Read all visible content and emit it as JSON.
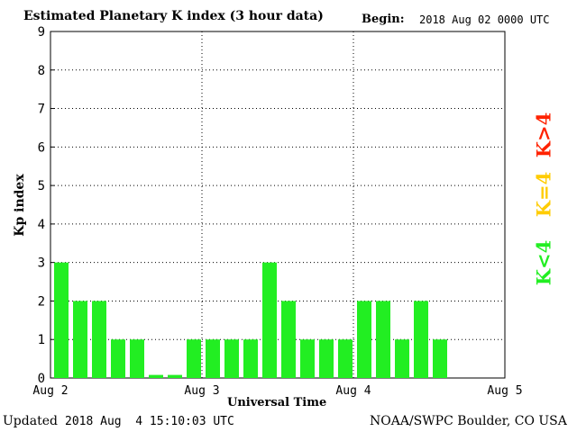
{
  "header": {
    "title": "Estimated Planetary K index (3 hour data)",
    "begin_label": "Begin:",
    "begin_value": "2018 Aug 02 0000 UTC"
  },
  "footer": {
    "updated_label": "Updated",
    "updated_value": "2018 Aug  4 15:10:03 UTC",
    "source": "NOAA/SWPC Boulder, CO USA"
  },
  "legend": {
    "low": {
      "label": "K<4",
      "color": "#22ee22"
    },
    "mid": {
      "label": "K=4",
      "color": "#ffcc00"
    },
    "high": {
      "label": "K>4",
      "color": "#ff2200"
    }
  },
  "chart_data": {
    "type": "bar",
    "title": "Estimated Planetary K index (3 hour data)",
    "xlabel": "Universal Time",
    "ylabel": "Kp index",
    "ylim": [
      0,
      9
    ],
    "yticks": [
      "0",
      "1",
      "2",
      "3",
      "4",
      "5",
      "6",
      "7",
      "8",
      "9"
    ],
    "xticks": [
      "Aug 2",
      "Aug 3",
      "Aug 4",
      "Aug 5"
    ],
    "grid": true,
    "interval_hours": 3,
    "x": [
      "2018-08-02 00:00",
      "2018-08-02 03:00",
      "2018-08-02 06:00",
      "2018-08-02 09:00",
      "2018-08-02 12:00",
      "2018-08-02 15:00",
      "2018-08-02 18:00",
      "2018-08-02 21:00",
      "2018-08-03 00:00",
      "2018-08-03 03:00",
      "2018-08-03 06:00",
      "2018-08-03 09:00",
      "2018-08-03 12:00",
      "2018-08-03 15:00",
      "2018-08-03 18:00",
      "2018-08-03 21:00",
      "2018-08-04 00:00",
      "2018-08-04 03:00",
      "2018-08-04 06:00",
      "2018-08-04 09:00",
      "2018-08-04 12:00"
    ],
    "values": [
      3,
      2,
      2,
      1,
      1,
      0,
      0,
      1,
      1,
      1,
      1,
      3,
      2,
      1,
      1,
      1,
      2,
      2,
      1,
      2,
      1
    ],
    "bar_color": "#22ee22"
  }
}
